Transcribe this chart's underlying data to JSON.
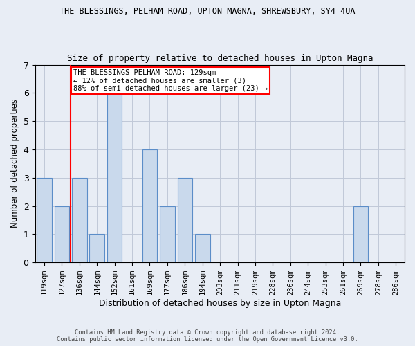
{
  "title1": "THE BLESSINGS, PELHAM ROAD, UPTON MAGNA, SHREWSBURY, SY4 4UA",
  "title2": "Size of property relative to detached houses in Upton Magna",
  "xlabel": "Distribution of detached houses by size in Upton Magna",
  "ylabel": "Number of detached properties",
  "categories": [
    "119sqm",
    "127sqm",
    "136sqm",
    "144sqm",
    "152sqm",
    "161sqm",
    "169sqm",
    "177sqm",
    "186sqm",
    "194sqm",
    "203sqm",
    "211sqm",
    "219sqm",
    "228sqm",
    "236sqm",
    "244sqm",
    "253sqm",
    "261sqm",
    "269sqm",
    "278sqm",
    "286sqm"
  ],
  "values": [
    3,
    2,
    3,
    1,
    6,
    0,
    4,
    2,
    3,
    1,
    0,
    0,
    0,
    0,
    0,
    0,
    0,
    0,
    2,
    0,
    0
  ],
  "bar_color": "#c9d9ec",
  "bar_edge_color": "#5b8dc8",
  "red_line_x": 1.5,
  "annotation_title": "THE BLESSINGS PELHAM ROAD: 129sqm",
  "annotation_line1": "← 12% of detached houses are smaller (3)",
  "annotation_line2": "88% of semi-detached houses are larger (23) →",
  "ylim": [
    0,
    7
  ],
  "yticks": [
    0,
    1,
    2,
    3,
    4,
    5,
    6,
    7
  ],
  "footer1": "Contains HM Land Registry data © Crown copyright and database right 2024.",
  "footer2": "Contains public sector information licensed under the Open Government Licence v3.0.",
  "bg_color": "#e8edf5",
  "plot_bg_color": "#e8edf5",
  "grid_color": "#c0c8d8"
}
